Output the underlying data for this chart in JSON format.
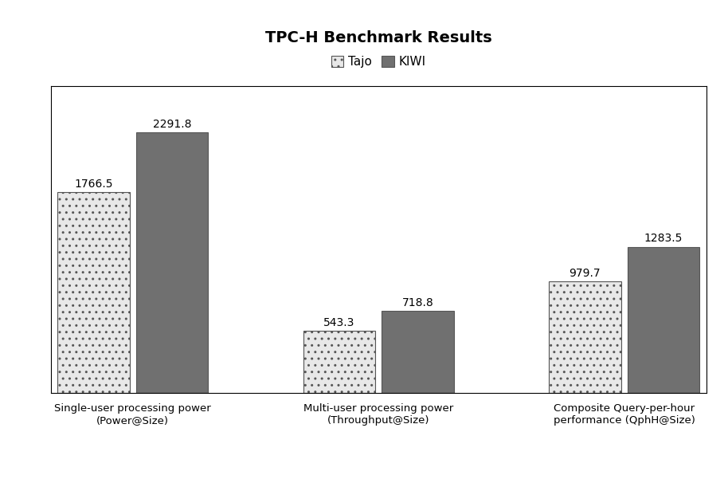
{
  "title": "TPC-H Benchmark Results",
  "categories": [
    "Single-user processing power\n(Power@Size)",
    "Multi-user processing power\n(Throughput@Size)",
    "Composite Query-per-hour\nperformance (QphH@Size)"
  ],
  "series": {
    "Tajo": [
      1766.5,
      543.3,
      979.7
    ],
    "KIWI": [
      2291.8,
      718.8,
      1283.5
    ]
  },
  "tajo_color": "#e8e8e8",
  "kiwi_color": "#707070",
  "tajo_hatch": "..",
  "kiwi_hatch": "",
  "bar_width": 0.22,
  "group_positions": [
    0.25,
    1.0,
    1.75
  ],
  "ylim": [
    0,
    2700
  ],
  "title_fontsize": 14,
  "tick_fontsize": 9.5,
  "value_fontsize": 10,
  "legend_fontsize": 11,
  "background_color": "#ffffff",
  "frame_color": "#000000"
}
